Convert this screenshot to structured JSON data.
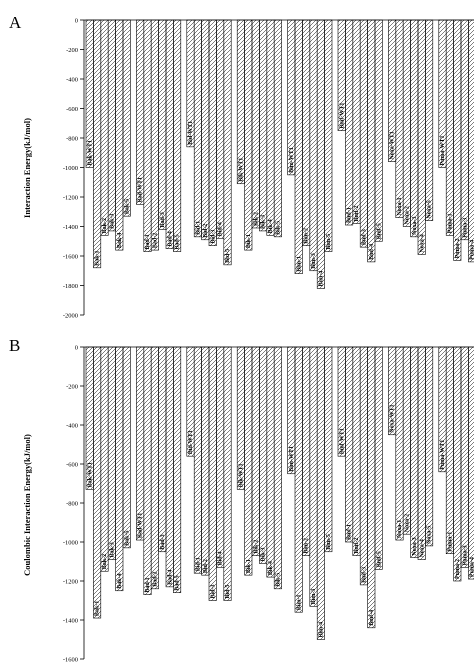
{
  "chart_data": [
    {
      "type": "bar",
      "panel_label": "A",
      "ylabel": "Interaction Energy(kJ/mol)",
      "ylim": [
        -2000,
        0
      ],
      "yticks": [
        0,
        -200,
        -400,
        -600,
        -800,
        -1000,
        -1200,
        -1400,
        -1600,
        -1800,
        -2000
      ],
      "groups": [
        {
          "name": "Bak",
          "bars": [
            {
              "label": "Bak-WT1",
              "value": -1000
            },
            {
              "label": "Bak-1",
              "value": -1680
            },
            {
              "label": "Bak-2",
              "value": -1460
            },
            {
              "label": "Bak-3",
              "value": -1430
            },
            {
              "label": "Bak-4",
              "value": -1560
            },
            {
              "label": "Bak-5",
              "value": -1330
            }
          ]
        },
        {
          "name": "Bad",
          "bars": [
            {
              "label": "Bad-WT1",
              "value": -1250
            },
            {
              "label": "Bad-1",
              "value": -1570
            },
            {
              "label": "Bad-2",
              "value": -1560
            },
            {
              "label": "Bad-3",
              "value": -1420
            },
            {
              "label": "Bad-4",
              "value": -1550
            },
            {
              "label": "Bad-5",
              "value": -1570
            }
          ]
        },
        {
          "name": "Bid",
          "bars": [
            {
              "label": "Bid-WT1",
              "value": -860
            },
            {
              "label": "Bid-1",
              "value": -1470
            },
            {
              "label": "Bid-2",
              "value": -1490
            },
            {
              "label": "Bid-3",
              "value": -1530
            },
            {
              "label": "Bid-4",
              "value": -1480
            },
            {
              "label": "Bid-5",
              "value": -1660
            }
          ]
        },
        {
          "name": "Bik",
          "bars": [
            {
              "label": "Bik-WT1",
              "value": -1110
            },
            {
              "label": "Bik-1",
              "value": -1560
            },
            {
              "label": "Bik-2",
              "value": -1410
            },
            {
              "label": "Bik-3",
              "value": -1430
            },
            {
              "label": "Bik-4",
              "value": -1460
            },
            {
              "label": "Bik-5",
              "value": -1470
            }
          ]
        },
        {
          "name": "Bim",
          "bars": [
            {
              "label": "Bim-WT1",
              "value": -1050
            },
            {
              "label": "Bim-1",
              "value": -1720
            },
            {
              "label": "Bim-2",
              "value": -1530
            },
            {
              "label": "Bim-3",
              "value": -1700
            },
            {
              "label": "Bim-4",
              "value": -1820
            },
            {
              "label": "Bim-5",
              "value": -1570
            }
          ]
        },
        {
          "name": "Bmf",
          "bars": [
            {
              "label": "Bmf-WT1",
              "value": -750
            },
            {
              "label": "Bmf-1",
              "value": -1390
            },
            {
              "label": "Bmf-2",
              "value": -1380
            },
            {
              "label": "Bmf-3",
              "value": -1540
            },
            {
              "label": "Bmf-4",
              "value": -1640
            },
            {
              "label": "Bmf-5",
              "value": -1500
            }
          ]
        },
        {
          "name": "Noxa",
          "bars": [
            {
              "label": "Noxa-WT1",
              "value": -960
            },
            {
              "label": "Noxa-1",
              "value": -1340
            },
            {
              "label": "Noxa-2",
              "value": -1400
            },
            {
              "label": "Noxa-3",
              "value": -1470
            },
            {
              "label": "Noxa-4",
              "value": -1590
            },
            {
              "label": "Noxa-5",
              "value": -1360
            }
          ]
        },
        {
          "name": "Puma",
          "bars": [
            {
              "label": "Puma-WT1",
              "value": -1000
            },
            {
              "label": "Puma-1",
              "value": -1460
            },
            {
              "label": "Puma-2",
              "value": -1630
            },
            {
              "label": "Puma-3",
              "value": -1490
            },
            {
              "label": "Puma-4",
              "value": -1640
            },
            {
              "label": "Puma-5",
              "value": -1350
            }
          ]
        }
      ]
    },
    {
      "type": "bar",
      "panel_label": "B",
      "ylabel": "Coulombic Interaction Energy(kJ/mol)",
      "ylim": [
        -1600,
        0
      ],
      "yticks": [
        0,
        -200,
        -400,
        -600,
        -800,
        -1000,
        -1200,
        -1400,
        -1600
      ],
      "groups": [
        {
          "name": "Bak",
          "bars": [
            {
              "label": "Bak-WT1",
              "value": -730
            },
            {
              "label": "Bak-1",
              "value": -1390
            },
            {
              "label": "Bak-2",
              "value": -1150
            },
            {
              "label": "Bak-3",
              "value": -1090
            },
            {
              "label": "Bak-4",
              "value": -1250
            },
            {
              "label": "Bak-5",
              "value": -1030
            }
          ]
        },
        {
          "name": "Bad",
          "bars": [
            {
              "label": "Bad-WT1",
              "value": -990
            },
            {
              "label": "Bad-1",
              "value": -1270
            },
            {
              "label": "Bad-2",
              "value": -1240
            },
            {
              "label": "Bad-3",
              "value": -1050
            },
            {
              "label": "Bad-4",
              "value": -1230
            },
            {
              "label": "Bad-5",
              "value": -1260
            }
          ]
        },
        {
          "name": "Bid",
          "bars": [
            {
              "label": "Bid-WT1",
              "value": -560
            },
            {
              "label": "Bid-1",
              "value": -1160
            },
            {
              "label": "Bid-2",
              "value": -1170
            },
            {
              "label": "Bid-3",
              "value": -1300
            },
            {
              "label": "Bid-4",
              "value": -1130
            },
            {
              "label": "Bid-5",
              "value": -1300
            }
          ]
        },
        {
          "name": "Bik",
          "bars": [
            {
              "label": "Bik-WT1",
              "value": -730
            },
            {
              "label": "Bik-1",
              "value": -1170
            },
            {
              "label": "Bik-2",
              "value": -1070
            },
            {
              "label": "Bik-3",
              "value": -1110
            },
            {
              "label": "Bik-4",
              "value": -1180
            },
            {
              "label": "Bik-5",
              "value": -1240
            }
          ]
        },
        {
          "name": "Bim",
          "bars": [
            {
              "label": "Bim-WT1",
              "value": -650
            },
            {
              "label": "Bim-1",
              "value": -1360
            },
            {
              "label": "Bim-2",
              "value": -1070
            },
            {
              "label": "Bim-3",
              "value": -1330
            },
            {
              "label": "Bim-4",
              "value": -1500
            },
            {
              "label": "Bim-5",
              "value": -1050
            }
          ]
        },
        {
          "name": "Bmf",
          "bars": [
            {
              "label": "Bmf-WT1",
              "value": -560
            },
            {
              "label": "Bmf-1",
              "value": -1000
            },
            {
              "label": "Bmf-2",
              "value": -1070
            },
            {
              "label": "Bmf-3",
              "value": -1220
            },
            {
              "label": "Bmf-4",
              "value": -1440
            },
            {
              "label": "Bmf-5",
              "value": -1140
            }
          ]
        },
        {
          "name": "Noxa",
          "bars": [
            {
              "label": "Noxa-WT1",
              "value": -450
            },
            {
              "label": "Noxa-1",
              "value": -990
            },
            {
              "label": "Noxa-2",
              "value": -960
            },
            {
              "label": "Noxa-3",
              "value": -1080
            },
            {
              "label": "Noxa-4",
              "value": -1090
            },
            {
              "label": "Noxa-5",
              "value": -1020
            }
          ]
        },
        {
          "name": "Puma",
          "bars": [
            {
              "label": "Puma-WT1",
              "value": -640
            },
            {
              "label": "Puma-1",
              "value": -1060
            },
            {
              "label": "Puma-2",
              "value": -1200
            },
            {
              "label": "Puma-3",
              "value": -1130
            },
            {
              "label": "Puma-4",
              "value": -1190
            },
            {
              "label": "Puma-5",
              "value": -1010
            }
          ]
        }
      ]
    }
  ]
}
